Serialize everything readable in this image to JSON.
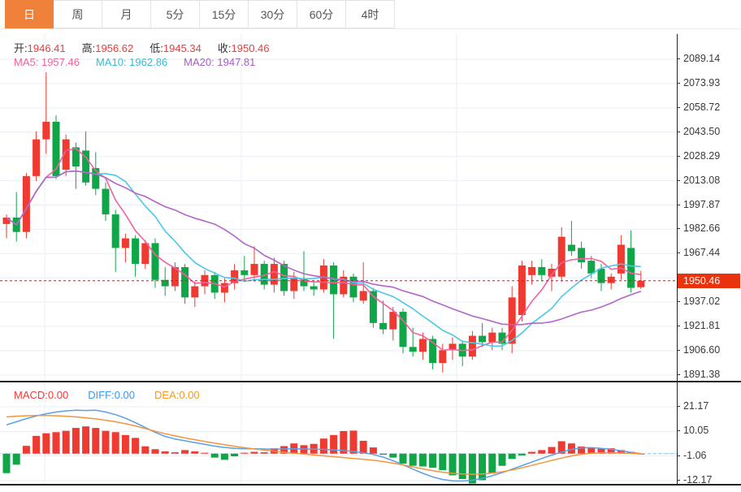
{
  "tabs": [
    {
      "label": "日",
      "active": true
    },
    {
      "label": "周",
      "active": false
    },
    {
      "label": "月",
      "active": false
    },
    {
      "label": "5分",
      "active": false
    },
    {
      "label": "15分",
      "active": false
    },
    {
      "label": "30分",
      "active": false
    },
    {
      "label": "60分",
      "active": false
    },
    {
      "label": "4时",
      "active": false
    }
  ],
  "info": {
    "open_label": "开:",
    "open": "1946.41",
    "high_label": "高:",
    "high": "1956.62",
    "low_label": "低:",
    "low": "1945.34",
    "close_label": "收:",
    "close": "1950.46",
    "ma5_label": "MA5:",
    "ma5": "1957.46",
    "ma10_label": "MA10:",
    "ma10": "1962.86",
    "ma20_label": "MA20:",
    "ma20": "1947.81"
  },
  "price_axis": {
    "current_price": "1950.46"
  },
  "macd_panel": {
    "macd_label": "MACD:",
    "macd_value": "0.00",
    "diff_label": "DIFF:",
    "diff_value": "0.00",
    "dea_label": "DEA:",
    "dea_value": "0.00"
  },
  "colors": {
    "up": "#ee3a31",
    "down": "#10a547",
    "ma5": "#f4609e",
    "ma10": "#49c8e8",
    "ma20": "#b365c8",
    "diff_line": "#5aa0e6",
    "dea_line": "#f2953f",
    "price_line": "#e81010",
    "badge_bg": "#e8330e",
    "active_tab": "#f0813a",
    "grid": "#e9eef6",
    "zero_dash": "#c3d3e6",
    "zero_ext": "#8fd3e8"
  },
  "chart_data": [
    {
      "type": "candlestick",
      "title": "Gold daily candlestick chart with MA5/MA10/MA20",
      "last_price": 1950.46,
      "ylim": [
        1884,
        2096
      ],
      "yticks": [
        2089.14,
        2073.93,
        2058.72,
        2043.5,
        2028.29,
        2013.08,
        1997.87,
        1982.66,
        1967.44,
        1937.02,
        1921.81,
        1906.6,
        1891.38
      ],
      "tick_step": 15.21,
      "ma_periods": [
        5,
        10,
        20
      ],
      "candles": [
        [
          1986,
          1992,
          1977,
          1990
        ],
        [
          1990,
          2006,
          1975,
          1981
        ],
        [
          1981,
          2018,
          1977,
          2016
        ],
        [
          2016,
          2044,
          2013,
          2039
        ],
        [
          2039,
          2081,
          2030,
          2050
        ],
        [
          2050,
          2054,
          2014,
          2016
        ],
        [
          2020,
          2042,
          2016,
          2039
        ],
        [
          2034,
          2037,
          2008,
          2022
        ],
        [
          2032,
          2044,
          2010,
          2012
        ],
        [
          2021,
          2031,
          2004,
          2008
        ],
        [
          2008,
          2012,
          1988,
          1992
        ],
        [
          1992,
          1995,
          1956,
          1971
        ],
        [
          1971,
          1980,
          1962,
          1977
        ],
        [
          1977,
          1979,
          1953,
          1961
        ],
        [
          1961,
          1976,
          1958,
          1974
        ],
        [
          1974,
          1977,
          1946,
          1951
        ],
        [
          1951,
          1959,
          1941,
          1947
        ],
        [
          1947,
          1962,
          1944,
          1959
        ],
        [
          1959,
          1961,
          1936,
          1940
        ],
        [
          1940,
          1950,
          1934,
          1947
        ],
        [
          1947,
          1957,
          1942,
          1954
        ],
        [
          1954,
          1956,
          1939,
          1943
        ],
        [
          1943,
          1952,
          1937,
          1949
        ],
        [
          1949,
          1961,
          1945,
          1957
        ],
        [
          1957,
          1966,
          1951,
          1954
        ],
        [
          1954,
          1972,
          1950,
          1961
        ],
        [
          1961,
          1963,
          1945,
          1948
        ],
        [
          1948,
          1965,
          1943,
          1961
        ],
        [
          1961,
          1963,
          1941,
          1944
        ],
        [
          1944,
          1956,
          1939,
          1952
        ],
        [
          1952,
          1969,
          1944,
          1947
        ],
        [
          1947,
          1950,
          1941,
          1945
        ],
        [
          1945,
          1964,
          1943,
          1960
        ],
        [
          1960,
          1962,
          1914,
          1942
        ],
        [
          1942,
          1957,
          1940,
          1953
        ],
        [
          1953,
          1955,
          1937,
          1940
        ],
        [
          1938,
          1962,
          1936,
          1944
        ],
        [
          1944,
          1946,
          1921,
          1924
        ],
        [
          1924,
          1938,
          1917,
          1920
        ],
        [
          1920,
          1934,
          1913,
          1931
        ],
        [
          1931,
          1933,
          1905,
          1909
        ],
        [
          1909,
          1921,
          1903,
          1906
        ],
        [
          1906,
          1918,
          1901,
          1914
        ],
        [
          1914,
          1916,
          1895,
          1899
        ],
        [
          1899,
          1911,
          1893,
          1907
        ],
        [
          1907,
          1915,
          1901,
          1911
        ],
        [
          1911,
          1913,
          1897,
          1903
        ],
        [
          1903,
          1919,
          1901,
          1916
        ],
        [
          1916,
          1924,
          1909,
          1912
        ],
        [
          1912,
          1921,
          1907,
          1918
        ],
        [
          1918,
          1921,
          1907,
          1911
        ],
        [
          1911,
          1947,
          1905,
          1940
        ],
        [
          1929,
          1963,
          1925,
          1960
        ],
        [
          1954,
          1963,
          1948,
          1959
        ],
        [
          1959,
          1964,
          1950,
          1954
        ],
        [
          1953,
          1961,
          1944,
          1958
        ],
        [
          1953,
          1984,
          1950,
          1978
        ],
        [
          1973,
          1988,
          1966,
          1969
        ],
        [
          1971,
          1975,
          1958,
          1962
        ],
        [
          1963,
          1966,
          1952,
          1955
        ],
        [
          1958,
          1961,
          1944,
          1949
        ],
        [
          1949,
          1955,
          1945,
          1953
        ],
        [
          1955,
          1979,
          1951,
          1973
        ],
        [
          1971,
          1982,
          1943,
          1946
        ],
        [
          1946.41,
          1956.62,
          1945.34,
          1950.46
        ]
      ]
    },
    {
      "type": "bar",
      "title": "MACD(12,26,9) histogram with DIFF and DEA lines",
      "yticks": [
        21.17,
        10.05,
        -1.06,
        -12.17
      ],
      "hist": [
        -8.8,
        -5.0,
        3.5,
        8.0,
        9.2,
        9.7,
        10.3,
        11.6,
        12.3,
        11.6,
        10.3,
        9.7,
        8.4,
        7.1,
        3.3,
        2.0,
        1.0,
        0.6,
        1.6,
        1.0,
        0.4,
        -1.8,
        -2.8,
        -1.2,
        0.4,
        0.8,
        0.6,
        2.4,
        3.4,
        4.6,
        3.8,
        4.4,
        6.8,
        8.4,
        10.2,
        10.4,
        5.8,
        2.8,
        -0.5,
        -1.8,
        -4.5,
        -5.5,
        -5.8,
        -6.4,
        -7.5,
        -9.8,
        -11.5,
        -13.5,
        -12.0,
        -9.0,
        -5.5,
        -2.4,
        -0.8,
        0.8,
        1.6,
        3.0,
        5.6,
        4.6,
        3.2,
        2.6,
        2.2,
        2.4,
        1.6,
        0.8,
        0.0
      ],
      "series": [
        {
          "name": "DIFF",
          "values": [
            13.0,
            14.4,
            15.8,
            17.0,
            18.0,
            18.8,
            19.3,
            19.6,
            19.5,
            19.6,
            18.8,
            17.6,
            16.0,
            14.0,
            11.8,
            9.6,
            7.8,
            6.6,
            5.8,
            5.0,
            4.2,
            3.4,
            2.8,
            2.4,
            2.2,
            2.2,
            2.1,
            2.0,
            2.1,
            2.2,
            2.1,
            2.0,
            1.9,
            1.7,
            1.4,
            1.0,
            0.4,
            -0.4,
            -1.6,
            -3.2,
            -5.0,
            -7.0,
            -8.9,
            -10.5,
            -11.7,
            -12.3,
            -12.4,
            -12.0,
            -11.2,
            -10.0,
            -8.6,
            -7.0,
            -5.4,
            -3.8,
            -2.2,
            -0.7,
            0.7,
            1.9,
            2.6,
            2.7,
            2.4,
            1.9,
            1.3,
            0.6,
            0.0
          ]
        },
        {
          "name": "DEA",
          "values": [
            16.6,
            16.9,
            17.1,
            17.2,
            17.2,
            17.1,
            16.9,
            16.6,
            16.2,
            15.7,
            15.1,
            14.4,
            13.5,
            12.5,
            11.3,
            10.1,
            9.0,
            8.0,
            7.1,
            6.3,
            5.5,
            4.7,
            4.0,
            3.3,
            2.7,
            2.1,
            1.6,
            1.1,
            0.6,
            0.2,
            -0.2,
            -0.6,
            -1.0,
            -1.4,
            -1.8,
            -2.2,
            -2.6,
            -3.0,
            -3.6,
            -4.3,
            -5.1,
            -6.0,
            -6.9,
            -7.7,
            -8.4,
            -8.9,
            -9.2,
            -9.3,
            -9.2,
            -8.8,
            -8.2,
            -7.4,
            -6.4,
            -5.3,
            -4.2,
            -3.1,
            -2.0,
            -1.0,
            -0.3,
            0.2,
            0.4,
            0.4,
            0.3,
            0.1,
            0.0
          ]
        }
      ]
    }
  ]
}
